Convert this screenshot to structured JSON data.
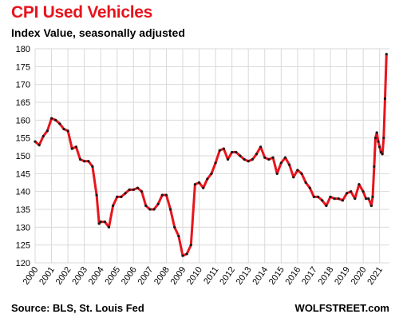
{
  "chart_data": {
    "type": "line",
    "title": "CPI Used Vehicles",
    "subtitle": "Index Value, seasonally adjusted",
    "source": "Source: BLS, St. Louis Fed",
    "brand": "WOLFSTREET.com",
    "xlabel": "",
    "ylabel": "",
    "xlim": [
      2000.0,
      2021.6
    ],
    "ylim": [
      120,
      180
    ],
    "y_ticks": [
      120,
      125,
      130,
      135,
      140,
      145,
      150,
      155,
      160,
      165,
      170,
      175,
      180
    ],
    "x_ticks": [
      "2000",
      "2001",
      "2002",
      "2003",
      "2004",
      "2005",
      "2006",
      "2007",
      "2008",
      "2009",
      "2010",
      "2011",
      "2012",
      "2013",
      "2014",
      "2015",
      "2016",
      "2017",
      "2018",
      "2019",
      "2020",
      "2021"
    ],
    "grid": true,
    "line_color": "#e8141c",
    "marker_color": "#1a1a1a",
    "series": [
      {
        "x": [
          2000.0,
          2000.25,
          2000.5,
          2000.75,
          2001.0,
          2001.25,
          2001.5,
          2001.75,
          2002.0,
          2002.25,
          2002.5,
          2002.75,
          2003.0,
          2003.25,
          2003.5,
          2003.75,
          2003.9,
          2004.0,
          2004.25,
          2004.5,
          2004.75,
          2005.0,
          2005.25,
          2005.5,
          2005.75,
          2006.0,
          2006.25,
          2006.5,
          2006.75,
          2007.0,
          2007.25,
          2007.5,
          2007.75,
          2008.0,
          2008.25,
          2008.5,
          2008.75,
          2009.0,
          2009.25,
          2009.5,
          2009.75,
          2010.0,
          2010.25,
          2010.5,
          2010.75,
          2011.0,
          2011.25,
          2011.5,
          2011.75,
          2012.0,
          2012.25,
          2012.5,
          2012.75,
          2013.0,
          2013.25,
          2013.5,
          2013.75,
          2014.0,
          2014.25,
          2014.5,
          2014.75,
          2015.0,
          2015.25,
          2015.5,
          2015.75,
          2016.0,
          2016.25,
          2016.5,
          2016.75,
          2017.0,
          2017.25,
          2017.5,
          2017.75,
          2018.0,
          2018.25,
          2018.5,
          2018.75,
          2019.0,
          2019.25,
          2019.5,
          2019.75,
          2020.0,
          2020.17,
          2020.33,
          2020.5,
          2020.58,
          2020.67,
          2020.75,
          2020.83,
          2020.92,
          2021.0,
          2021.08,
          2021.17,
          2021.25,
          2021.33,
          2021.42
        ],
        "y": [
          154,
          153,
          155.5,
          157,
          160.5,
          160,
          159,
          157.5,
          157,
          152,
          152.5,
          149,
          148.5,
          148.5,
          147,
          139,
          131,
          131.5,
          131.5,
          130,
          136,
          138.5,
          138.5,
          139.5,
          140.5,
          140.5,
          141,
          140,
          136,
          135,
          135,
          136.5,
          139,
          139,
          135,
          130,
          127.5,
          122,
          122.5,
          125,
          142,
          142.5,
          141,
          143.5,
          145,
          148,
          151.5,
          152,
          149,
          151,
          151,
          150,
          149,
          148.5,
          149,
          150.5,
          152.5,
          149.5,
          149,
          149.5,
          145,
          148,
          149.5,
          147.5,
          144,
          146,
          145,
          142.5,
          141,
          138.5,
          138.5,
          137.5,
          136,
          138.5,
          138,
          138,
          137.5,
          139.5,
          140,
          138,
          142,
          140,
          138,
          138,
          136,
          138.5,
          147,
          155,
          156.5,
          154,
          152.5,
          151,
          150.5,
          155,
          166,
          178.5
        ]
      }
    ]
  }
}
